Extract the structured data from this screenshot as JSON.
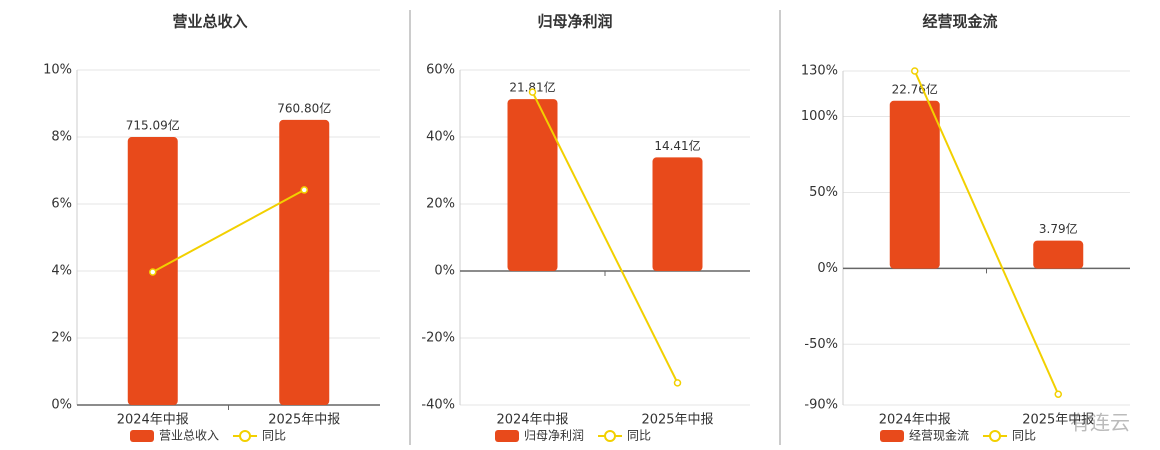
{
  "chart_data": [
    {
      "type": "bar",
      "title": "营业总收入",
      "categories": [
        "2024年中报",
        "2025年中报"
      ],
      "series": [
        {
          "name": "营业总收入",
          "color": "#e84a1b",
          "values": [
            715.09,
            760.8
          ],
          "value_labels": [
            "715.09亿",
            "760.80亿"
          ],
          "axis": "y2"
        },
        {
          "name": "同比",
          "type": "line",
          "color": "#f2d000",
          "values": [
            3.97,
            6.42
          ]
        }
      ],
      "ylim": [
        0,
        10
      ],
      "yticks": [
        {
          "value": 0,
          "label": "0%"
        },
        {
          "value": 2,
          "label": "2%"
        },
        {
          "value": 4,
          "label": "4%"
        },
        {
          "value": 6,
          "label": "6%"
        },
        {
          "value": 8,
          "label": "8%"
        },
        {
          "value": 10,
          "label": "10%"
        }
      ],
      "y2lim": [
        0,
        894
      ],
      "grid": true
    },
    {
      "type": "bar",
      "title": "归母净利润",
      "categories": [
        "2024年中报",
        "2025年中报"
      ],
      "series": [
        {
          "name": "归母净利润",
          "color": "#e84a1b",
          "values": [
            21.81,
            14.41
          ],
          "value_labels": [
            "21.81亿",
            "14.41亿"
          ],
          "axis": "y2"
        },
        {
          "name": "同比",
          "type": "line",
          "color": "#f2d000",
          "values": [
            53.4,
            -33.4
          ]
        }
      ],
      "ylim": [
        -40,
        60
      ],
      "yticks": [
        {
          "value": -40,
          "label": "-40%"
        },
        {
          "value": -20,
          "label": "-20%"
        },
        {
          "value": 0,
          "label": "0%"
        },
        {
          "value": 20,
          "label": "20%"
        },
        {
          "value": 40,
          "label": "40%"
        },
        {
          "value": 60,
          "label": "60%"
        }
      ],
      "y2lim": [
        -17,
        25.5
      ],
      "grid": true
    },
    {
      "type": "bar",
      "title": "经营现金流",
      "categories": [
        "2024年中报",
        "2025年中报"
      ],
      "series": [
        {
          "name": "经营现金流",
          "color": "#e84a1b",
          "values": [
            22.76,
            3.79
          ],
          "value_labels": [
            "22.76亿",
            "3.79亿"
          ],
          "axis": "y2"
        },
        {
          "name": "同比",
          "type": "line",
          "color": "#f2d000",
          "values": [
            130,
            -82.9
          ]
        }
      ],
      "ylim": [
        -90,
        130
      ],
      "yticks": [
        {
          "value": -90,
          "label": "-90%"
        },
        {
          "value": -50,
          "label": "-50%"
        },
        {
          "value": 0,
          "label": "0%"
        },
        {
          "value": 50,
          "label": "50%"
        },
        {
          "value": 100,
          "label": "100%"
        },
        {
          "value": 130,
          "label": "130%"
        }
      ],
      "y2lim": [
        -18.5,
        26.8
      ],
      "grid": true
    }
  ],
  "watermark": "有连云"
}
